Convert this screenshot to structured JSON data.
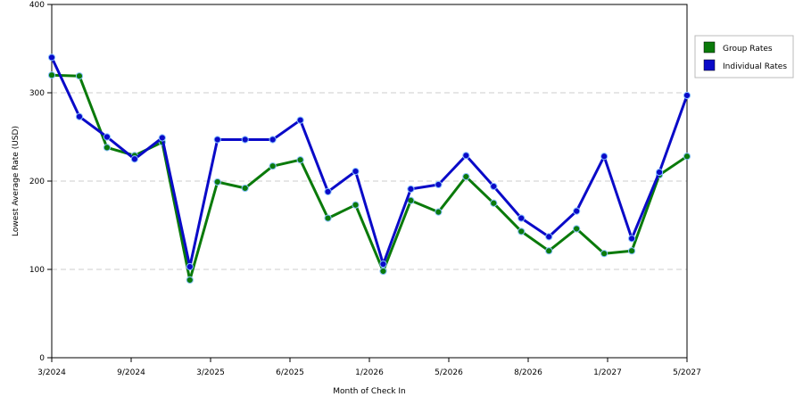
{
  "chart_data": {
    "type": "line",
    "xlabel": "Month of Check In",
    "ylabel": "Lowest Average Rate (USD)",
    "ylim": [
      0,
      400
    ],
    "yticks": [
      0,
      100,
      200,
      300,
      400
    ],
    "grid": true,
    "legend_position": "top-right",
    "x_tick_labels": [
      "3/2024",
      "9/2024",
      "3/2025",
      "6/2025",
      "1/2026",
      "5/2026",
      "8/2026",
      "1/2027",
      "5/2027"
    ],
    "series": [
      {
        "name": "Group Rates",
        "color": "#0a7a0a",
        "values": [
          320,
          319,
          238,
          229,
          244,
          88,
          199,
          192,
          217,
          224,
          158,
          173,
          98,
          178,
          165,
          205,
          175,
          143,
          121,
          146,
          118,
          121,
          207,
          228
        ]
      },
      {
        "name": "Individual Rates",
        "color": "#0a0ac8",
        "values": [
          340,
          273,
          250,
          225,
          249,
          103,
          247,
          247,
          247,
          269,
          188,
          211,
          106,
          191,
          196,
          229,
          194,
          158,
          137,
          166,
          228,
          135,
          210,
          297
        ]
      }
    ]
  }
}
